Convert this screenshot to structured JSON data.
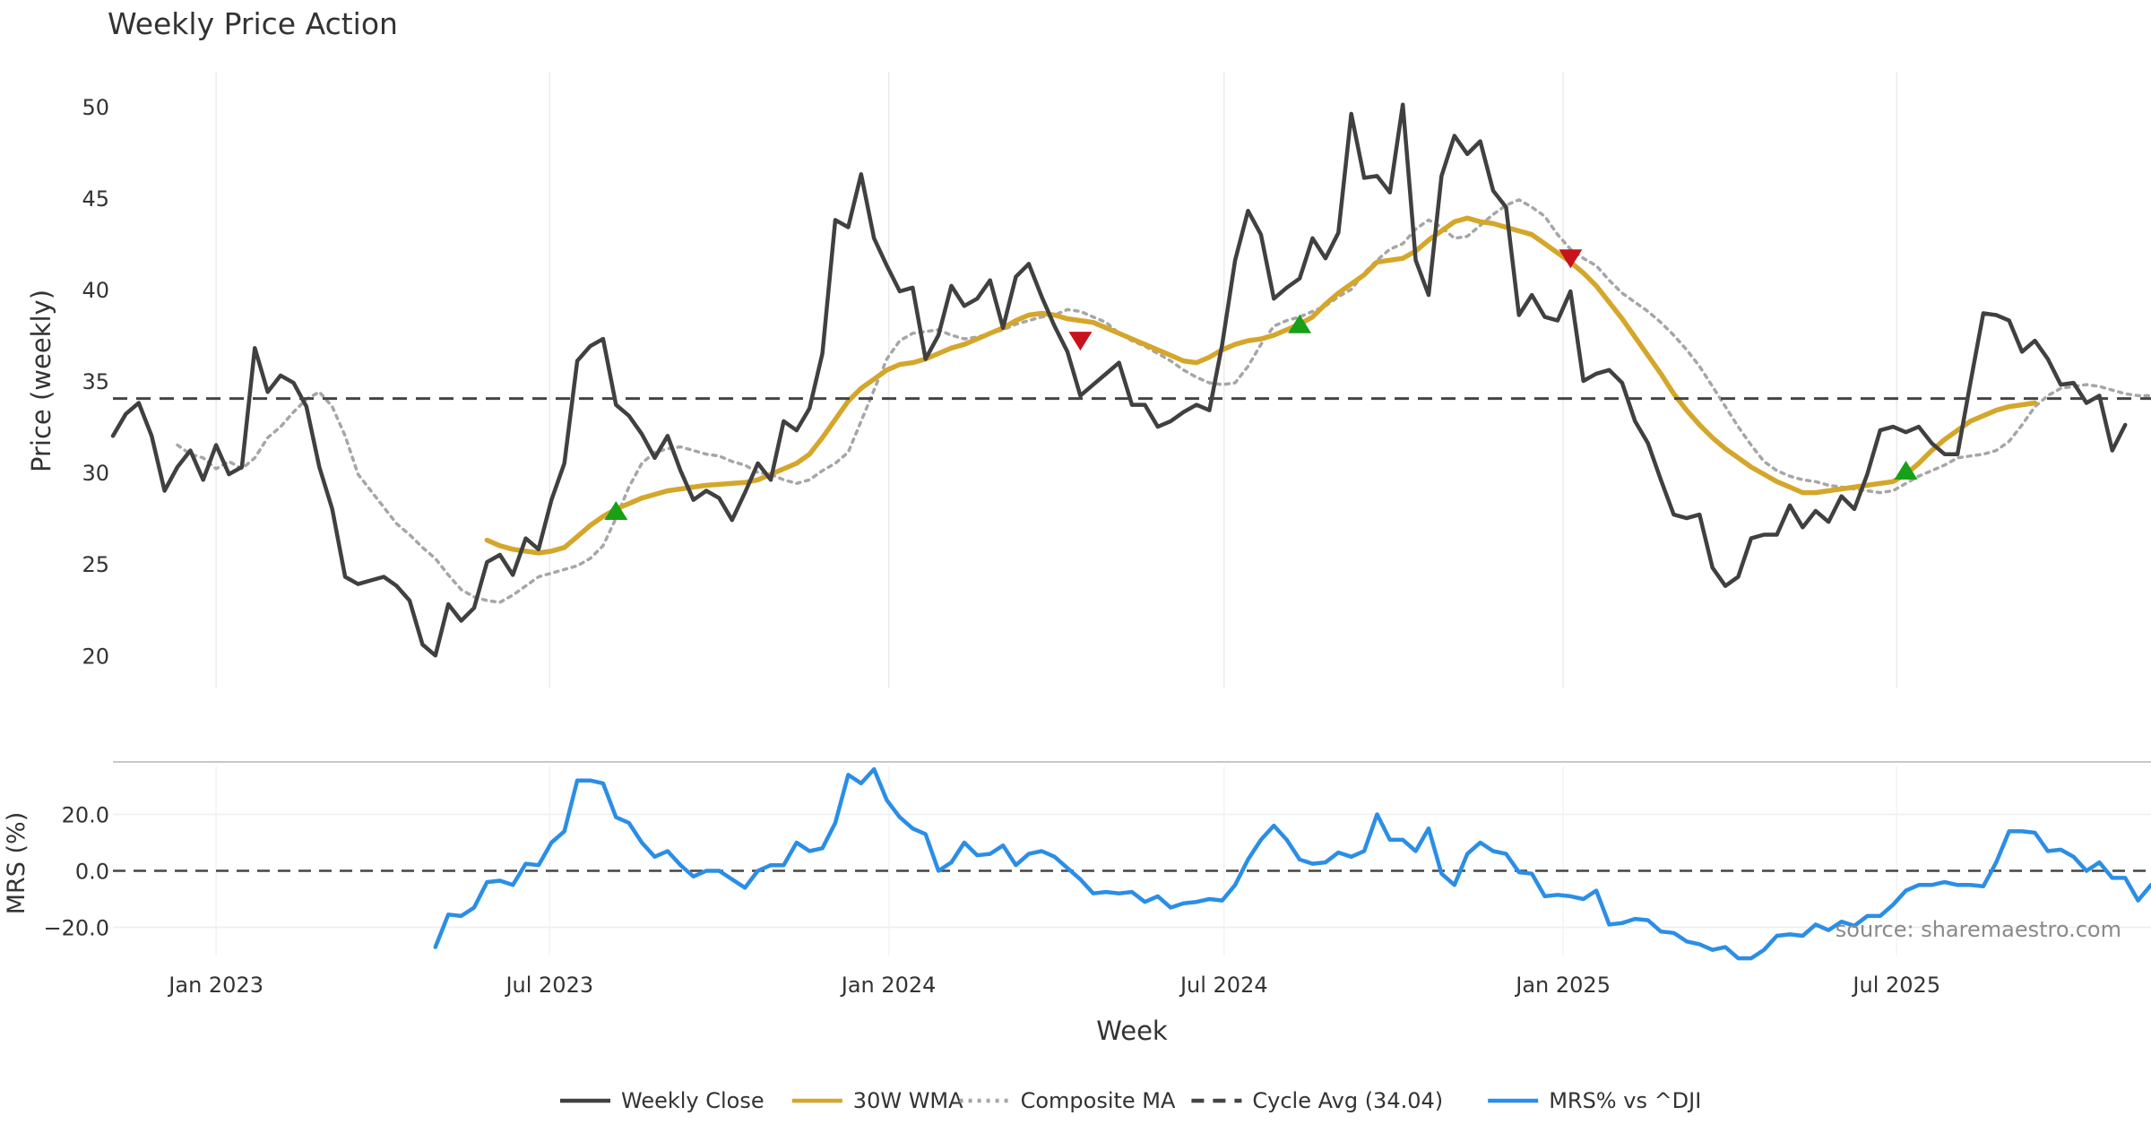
{
  "chart_data": {
    "type": "line",
    "title": "Weekly Price Action",
    "xlabel": "Week",
    "source": "source: sharemaestro.com",
    "colors": {
      "close": "#404040",
      "wma": "#d4a62a",
      "composite": "#a6a6a6",
      "cycle": "#444444",
      "mrs": "#2b8ee6",
      "buy": "#18a018",
      "sell": "#c8131d",
      "grid": "#ebebeb"
    },
    "x_ticks": [
      {
        "date": "2023-01-01",
        "label": "Jan 2023"
      },
      {
        "date": "2023-07-01",
        "label": "Jul 2023"
      },
      {
        "date": "2024-01-01",
        "label": "Jan 2024"
      },
      {
        "date": "2024-07-01",
        "label": "Jul 2024"
      },
      {
        "date": "2025-01-01",
        "label": "Jan 2025"
      },
      {
        "date": "2025-07-01",
        "label": "Jul 2025"
      }
    ],
    "x_range": [
      "2022-11-06",
      "2025-11-16"
    ],
    "price_panel": {
      "ylabel": "Price (weekly)",
      "ylim": [
        18.2,
        51.9
      ],
      "yticks": [
        {
          "value": 20,
          "label": "20"
        },
        {
          "value": 25,
          "label": "25"
        },
        {
          "value": 30,
          "label": "30"
        },
        {
          "value": 35,
          "label": "35"
        },
        {
          "value": 40,
          "label": "40"
        },
        {
          "value": 45,
          "label": "45"
        },
        {
          "value": 50,
          "label": "50"
        }
      ],
      "cycle_avg": 34.04,
      "series": [
        {
          "name": "Weekly Close",
          "start": "2022-11-06",
          "values": [
            32.0,
            33.2,
            33.8,
            32.0,
            29.0,
            30.3,
            31.2,
            29.6,
            31.5,
            29.9,
            30.3,
            36.8,
            34.4,
            35.3,
            34.9,
            33.6,
            30.3,
            28.0,
            24.3,
            23.9,
            24.1,
            24.3,
            23.8,
            23.0,
            20.6,
            20.0,
            22.8,
            21.9,
            22.6,
            25.1,
            25.5,
            24.4,
            26.4,
            25.8,
            28.5,
            30.5,
            36.1,
            36.9,
            37.3,
            33.7,
            33.1,
            32.1,
            30.8,
            32.0,
            30.1,
            28.5,
            29.0,
            28.6,
            27.4,
            28.9,
            30.5,
            29.6,
            32.8,
            32.3,
            33.5,
            36.5,
            43.8,
            43.4,
            46.3,
            42.8,
            41.3,
            39.9,
            40.1,
            36.2,
            37.5,
            40.2,
            39.1,
            39.5,
            40.5,
            37.9,
            40.7,
            41.4,
            39.6,
            38.0,
            36.6,
            34.2,
            34.8,
            35.4,
            36.0,
            33.7,
            33.7,
            32.5,
            32.8,
            33.3,
            33.7,
            33.4,
            37.0,
            41.6,
            44.3,
            43.0,
            39.5,
            40.1,
            40.6,
            42.8,
            41.7,
            43.1,
            49.6,
            46.1,
            46.2,
            45.3,
            50.1,
            41.6,
            39.7,
            46.2,
            48.4,
            47.4,
            48.1,
            45.4,
            44.5,
            38.6,
            39.7,
            38.5,
            38.3,
            39.9,
            35.0,
            35.4,
            35.6,
            34.9,
            32.8,
            31.6,
            29.6,
            27.7,
            27.5,
            27.7,
            24.8,
            23.8,
            24.3,
            26.4,
            26.6,
            26.6,
            28.2,
            27.0,
            27.9,
            27.3,
            28.7,
            28.0,
            29.9,
            32.3,
            32.5,
            32.2,
            32.5,
            31.6,
            31.0,
            31.0,
            34.9,
            38.7,
            38.6,
            38.3,
            36.6,
            37.2,
            36.2,
            34.8,
            34.9,
            33.8,
            34.2,
            31.2,
            32.6
          ]
        },
        {
          "name": "Composite MA",
          "start": "2022-12-11",
          "values": [
            31.5,
            31.0,
            30.8,
            30.2,
            30.6,
            30.2,
            30.8,
            31.9,
            32.5,
            33.3,
            34.0,
            34.4,
            33.6,
            32.0,
            29.9,
            29.0,
            28.1,
            27.2,
            26.6,
            25.9,
            25.3,
            24.4,
            23.6,
            23.2,
            23.0,
            22.9,
            23.3,
            23.8,
            24.3,
            24.5,
            24.7,
            24.9,
            25.3,
            26.0,
            27.5,
            29.2,
            30.5,
            31.1,
            31.3,
            31.4,
            31.2,
            31.0,
            30.9,
            30.6,
            30.4,
            30.0,
            29.9,
            29.6,
            29.4,
            29.6,
            30.1,
            30.5,
            31.1,
            32.8,
            34.5,
            36.2,
            37.2,
            37.6,
            37.7,
            37.8,
            37.5,
            37.3,
            37.4,
            37.6,
            37.8,
            38.1,
            38.3,
            38.5,
            38.6,
            38.9,
            38.8,
            38.5,
            38.2,
            37.6,
            37.2,
            36.9,
            36.5,
            36.1,
            35.6,
            35.2,
            34.9,
            34.8,
            34.9,
            35.8,
            37.0,
            38.0,
            38.3,
            38.5,
            38.8,
            39.1,
            39.6,
            40.0,
            40.9,
            41.6,
            42.2,
            42.5,
            43.3,
            43.8,
            43.4,
            42.8,
            42.9,
            43.5,
            44.1,
            44.6,
            44.9,
            44.5,
            44.0,
            43.0,
            42.2,
            41.7,
            41.3,
            40.5,
            39.8,
            39.3,
            38.8,
            38.2,
            37.5,
            36.7,
            35.8,
            34.7,
            33.6,
            32.5,
            31.5,
            30.6,
            30.1,
            29.8,
            29.6,
            29.5,
            29.3,
            29.2,
            29.1,
            29.0,
            28.9,
            29.0,
            29.4,
            29.8,
            30.1,
            30.4,
            30.8,
            30.9,
            31.0,
            31.2,
            31.7,
            32.6,
            33.6,
            34.2,
            34.6,
            34.7,
            34.8,
            34.7,
            34.5,
            34.3,
            34.2,
            34.2
          ]
        },
        {
          "name": "30W WMA",
          "start": "2023-05-28",
          "values": [
            26.3,
            26.0,
            25.8,
            25.7,
            25.6,
            25.7,
            25.9,
            26.5,
            27.1,
            27.6,
            28.0,
            28.3,
            28.6,
            28.8,
            29.0,
            29.1,
            29.2,
            29.3,
            29.35,
            29.4,
            29.45,
            29.6,
            29.9,
            30.2,
            30.5,
            31.0,
            31.9,
            32.9,
            33.9,
            34.6,
            35.1,
            35.6,
            35.9,
            36.0,
            36.2,
            36.5,
            36.8,
            37.0,
            37.3,
            37.6,
            37.9,
            38.3,
            38.6,
            38.7,
            38.6,
            38.4,
            38.3,
            38.2,
            37.9,
            37.6,
            37.3,
            37.0,
            36.7,
            36.4,
            36.1,
            36.0,
            36.3,
            36.7,
            37.0,
            37.2,
            37.3,
            37.5,
            37.8,
            38.1,
            38.5,
            39.2,
            39.8,
            40.3,
            40.8,
            41.5,
            41.6,
            41.7,
            42.1,
            42.7,
            43.2,
            43.7,
            43.9,
            43.7,
            43.6,
            43.4,
            43.2,
            43.0,
            42.5,
            42.0,
            41.5,
            40.9,
            40.2,
            39.3,
            38.4,
            37.4,
            36.4,
            35.4,
            34.3,
            33.4,
            32.6,
            31.9,
            31.3,
            30.8,
            30.3,
            29.9,
            29.5,
            29.2,
            28.9,
            28.9,
            29.0,
            29.1,
            29.2,
            29.3,
            29.4,
            29.5,
            29.9,
            30.5,
            31.2,
            31.8,
            32.3,
            32.8,
            33.1,
            33.4,
            33.6,
            33.7,
            33.8
          ]
        }
      ],
      "signals": [
        {
          "type": "buy",
          "date": "2023-08-06",
          "value": 27.9
        },
        {
          "type": "sell",
          "date": "2024-04-14",
          "value": 37.2
        },
        {
          "type": "buy",
          "date": "2024-08-11",
          "value": 38.1
        },
        {
          "type": "sell",
          "date": "2025-01-05",
          "value": 41.7
        },
        {
          "type": "buy",
          "date": "2025-07-06",
          "value": 30.1
        }
      ]
    },
    "mrs_panel": {
      "ylabel": "MRS (%)",
      "ylim": [
        -30,
        37
      ],
      "yticks": [
        {
          "value": 20,
          "label": "20.0"
        },
        {
          "value": 0,
          "label": "0.0"
        },
        {
          "value": -20,
          "label": "−20.0"
        }
      ],
      "series": {
        "name": "MRS% vs ^DJI",
        "start": "2023-04-30",
        "values": [
          -27,
          -15.5,
          -16,
          -13,
          -4,
          -3.5,
          -5,
          2.5,
          2,
          10,
          14,
          32,
          32,
          31,
          19,
          17,
          10,
          5,
          7,
          2,
          -2,
          0,
          0,
          -3,
          -6,
          0,
          2,
          2,
          10,
          7,
          8,
          17,
          34,
          31,
          36,
          25,
          19,
          15,
          13,
          0,
          3,
          10,
          5.5,
          6,
          9,
          2,
          6,
          7,
          5,
          1,
          -3,
          -8,
          -7.5,
          -8,
          -7.5,
          -11,
          -9,
          -13,
          -11.5,
          -11,
          -10,
          -10.5,
          -5,
          4,
          11,
          16,
          11,
          4,
          2.5,
          3,
          6.5,
          5,
          7,
          20,
          11,
          11,
          7,
          15,
          -1,
          -5,
          6,
          10,
          7,
          6,
          -0.5,
          -1,
          -9,
          -8.5,
          -9,
          -10,
          -7,
          -19,
          -18.5,
          -17,
          -17.5,
          -21.5,
          -22,
          -25,
          -26,
          -28,
          -27,
          -31,
          -31,
          -28,
          -23,
          -22.5,
          -23,
          -19,
          -21,
          -18,
          -19.5,
          -16,
          -16,
          -12,
          -7,
          -5,
          -5,
          -4,
          -5,
          -5,
          -5.5,
          3,
          14,
          14,
          13.5,
          7,
          7.5,
          5,
          0,
          3,
          -2.5,
          -2.5,
          -10.5,
          -5
        ]
      }
    },
    "legend": [
      {
        "name": "Weekly Close",
        "style": "solid",
        "color": "#404040"
      },
      {
        "name": "30W WMA",
        "style": "solid",
        "color": "#d4a62a"
      },
      {
        "name": "Composite MA",
        "style": "dotted",
        "color": "#a6a6a6"
      },
      {
        "name": "Cycle Avg (34.04)",
        "style": "dashed",
        "color": "#444444"
      },
      {
        "name": "MRS% vs ^DJI",
        "style": "solid",
        "color": "#2b8ee6"
      }
    ]
  }
}
